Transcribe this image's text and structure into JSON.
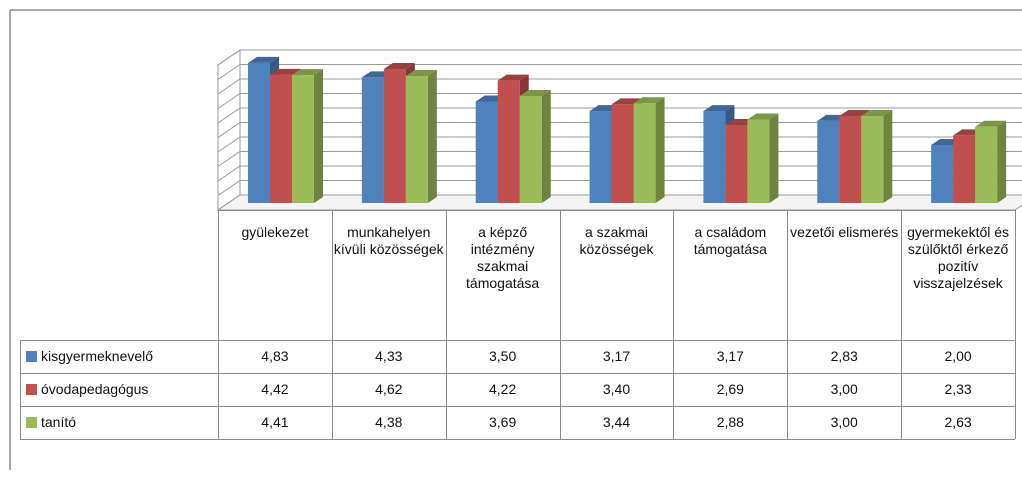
{
  "chart_data": {
    "type": "bar3d",
    "categories": [
      "gyülekezet",
      "munkahelyen kívüli közösségek",
      "a képző intézmény szakmai támogatása",
      "a szakmai közösségek",
      "a családom támogatása",
      "vezetői elismerés",
      "gyermekektől és szülőktől érkező pozitív visszajelzések"
    ],
    "series": [
      {
        "name": "kisgyermeknevelő",
        "color": "#4f81bd",
        "values": [
          4.83,
          4.33,
          3.5,
          3.17,
          3.17,
          2.83,
          2.0
        ],
        "value_labels": [
          "4,83",
          "4,33",
          "3,50",
          "3,17",
          "3,17",
          "2,83",
          "2,00"
        ]
      },
      {
        "name": "óvodapedagógus",
        "color": "#c0504d",
        "values": [
          4.42,
          4.62,
          4.22,
          3.4,
          2.69,
          3.0,
          2.33
        ],
        "value_labels": [
          "4,42",
          "4,62",
          "4,22",
          "3,40",
          "2,69",
          "3,00",
          "2,33"
        ]
      },
      {
        "name": "tanító",
        "color": "#9bbb59",
        "values": [
          4.41,
          4.38,
          3.69,
          3.44,
          2.88,
          3.0,
          2.63
        ],
        "value_labels": [
          "4,41",
          "4,38",
          "3,69",
          "3,44",
          "2,88",
          "3,00",
          "2,63"
        ]
      }
    ],
    "ylim": [
      0,
      5
    ],
    "yticks": [
      0,
      0.5,
      1,
      1.5,
      2,
      2.5,
      3,
      3.5,
      4,
      4.5,
      5
    ],
    "grid": true
  }
}
